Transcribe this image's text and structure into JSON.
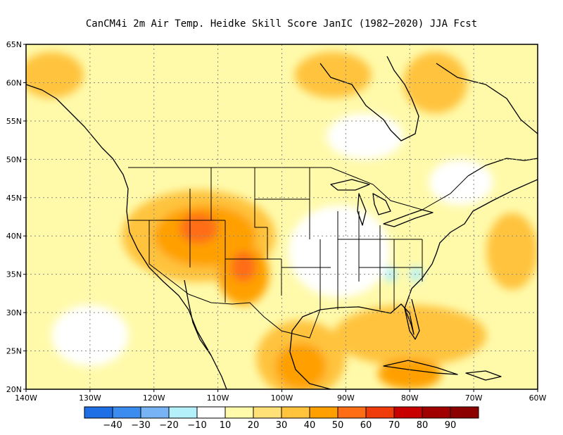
{
  "title": "CanCM4i  2m Air Temp. Heidke Skill Score JanIC (1982−2020) JJA Fcst",
  "map": {
    "lon_range": [
      -140,
      -60
    ],
    "lat_range": [
      20,
      65
    ],
    "lon_ticks": [
      {
        "value": -140,
        "label": "140W"
      },
      {
        "value": -130,
        "label": "130W"
      },
      {
        "value": -120,
        "label": "120W"
      },
      {
        "value": -110,
        "label": "110W"
      },
      {
        "value": -100,
        "label": "100W"
      },
      {
        "value": -90,
        "label": "90W"
      },
      {
        "value": -80,
        "label": "80W"
      },
      {
        "value": -70,
        "label": "70W"
      },
      {
        "value": -60,
        "label": "60W"
      }
    ],
    "lat_ticks": [
      {
        "value": 20,
        "label": "20N"
      },
      {
        "value": 25,
        "label": "25N"
      },
      {
        "value": 30,
        "label": "30N"
      },
      {
        "value": 35,
        "label": "35N"
      },
      {
        "value": 40,
        "label": "40N"
      },
      {
        "value": 45,
        "label": "45N"
      },
      {
        "value": 50,
        "label": "50N"
      },
      {
        "value": 55,
        "label": "55N"
      },
      {
        "value": 60,
        "label": "60N"
      },
      {
        "value": 65,
        "label": "65N"
      }
    ],
    "grid": true
  },
  "colorbar": {
    "colors": [
      "#1e6fe6",
      "#3c8cf0",
      "#78b4f5",
      "#b4f0fa",
      "#ffffff",
      "#fffaaa",
      "#ffe178",
      "#ffc33c",
      "#ffa000",
      "#ff6e14",
      "#f03c0a",
      "#c80000",
      "#a00000",
      "#8c0000"
    ],
    "labels": [
      "−40",
      "−30",
      "−20",
      "−10",
      "10",
      "20",
      "30",
      "40",
      "50",
      "60",
      "70",
      "80",
      "90"
    ]
  },
  "skill_regions": [
    {
      "level": 30,
      "lat": 40,
      "lon": -113,
      "rlat": 6,
      "rlon": 12
    },
    {
      "level": 40,
      "lat": 40,
      "lon": -112,
      "rlat": 4,
      "rlon": 8
    },
    {
      "level": 50,
      "lat": 41,
      "lon": -113,
      "rlat": 2,
      "rlon": 3
    },
    {
      "level": 40,
      "lat": 35,
      "lon": -106,
      "rlat": 4,
      "rlon": 4
    },
    {
      "level": 50,
      "lat": 36,
      "lon": -106,
      "rlat": 2,
      "rlon": 2
    },
    {
      "level": 30,
      "lat": 24,
      "lon": -97,
      "rlat": 5,
      "rlon": 7
    },
    {
      "level": 40,
      "lat": 23,
      "lon": -97,
      "rlat": 3,
      "rlon": 4
    },
    {
      "level": 30,
      "lat": 61,
      "lon": -92,
      "rlat": 3,
      "rlon": 6
    },
    {
      "level": 30,
      "lat": 60,
      "lon": -76,
      "rlat": 4,
      "rlon": 5
    },
    {
      "level": 30,
      "lat": 27,
      "lon": -80,
      "rlat": 4,
      "rlon": 12
    },
    {
      "level": 40,
      "lat": 22,
      "lon": -80,
      "rlat": 2,
      "rlon": 5
    },
    {
      "level": 30,
      "lat": 38,
      "lon": -64,
      "rlat": 5,
      "rlon": 4
    },
    {
      "level": 30,
      "lat": 61,
      "lon": -136,
      "rlat": 3,
      "rlon": 5
    },
    {
      "level": 10,
      "lat": 38,
      "lon": -91,
      "rlat": 6,
      "rlon": 8
    },
    {
      "level": 10,
      "lat": 53,
      "lon": -87,
      "rlat": 3,
      "rlon": 6
    },
    {
      "level": 10,
      "lat": 47,
      "lon": -72,
      "rlat": 3,
      "rlon": 5
    },
    {
      "level": 10,
      "lat": 27,
      "lon": -130,
      "rlat": 4,
      "rlon": 6
    },
    {
      "level": -10,
      "lat": 35,
      "lon": -79,
      "rlat": 1,
      "rlon": 1
    },
    {
      "level": -10,
      "lat": 35,
      "lon": -83,
      "rlat": 1,
      "rlon": 1
    }
  ]
}
